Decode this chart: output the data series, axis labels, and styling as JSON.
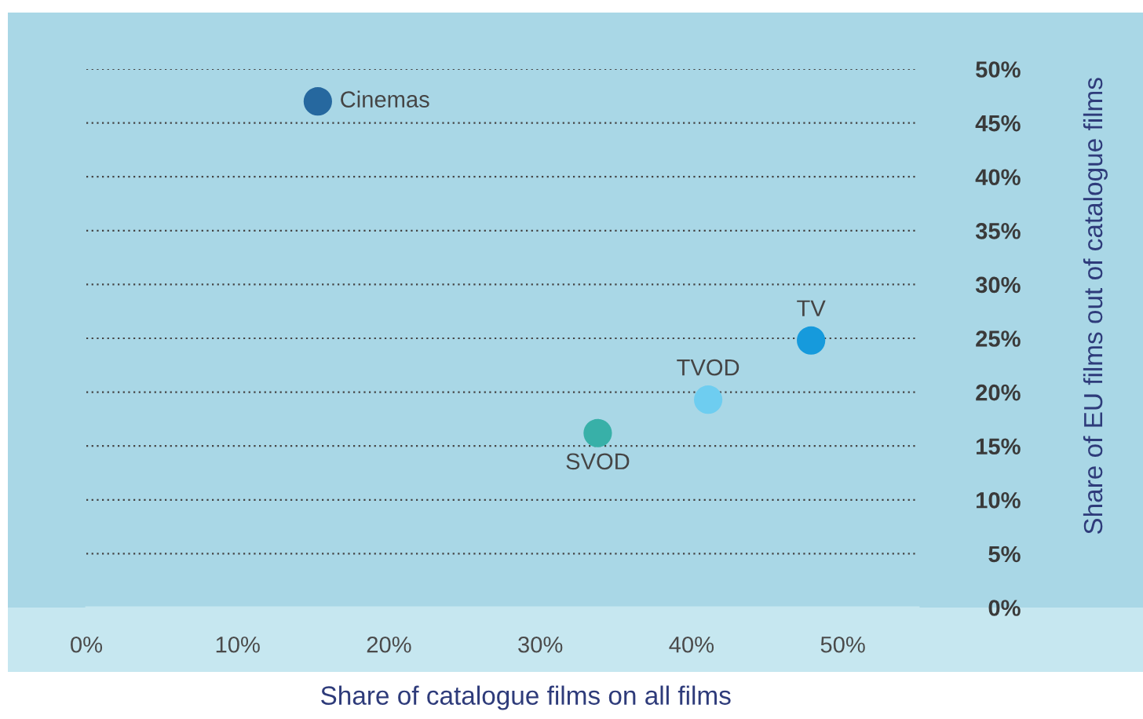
{
  "chart_data": {
    "type": "scatter",
    "xlabel": "Share of catalogue films on all films",
    "ylabel": "Share of EU films out of catalogue films",
    "series": [
      {
        "name": "Cinemas",
        "color": "#26689f",
        "x": [
          15.3
        ],
        "values": [
          47.0
        ]
      },
      {
        "name": "TV",
        "color": "#169adc",
        "x": [
          47.9
        ],
        "values": [
          24.8
        ]
      },
      {
        "name": "TVOD",
        "color": "#6ecdf0",
        "x": [
          41.1
        ],
        "values": [
          19.3
        ]
      },
      {
        "name": "SVOD",
        "color": "#38b0a8",
        "x": [
          33.8
        ],
        "values": [
          16.2
        ]
      }
    ],
    "xlim": [
      0,
      55
    ],
    "ylim": [
      0,
      50
    ],
    "xticks": [
      {
        "value": 0,
        "label": "0%"
      },
      {
        "value": 10,
        "label": "10%"
      },
      {
        "value": 20,
        "label": "20%"
      },
      {
        "value": 30,
        "label": "30%"
      },
      {
        "value": 40,
        "label": "40%"
      },
      {
        "value": 50,
        "label": "50%"
      }
    ],
    "yticks": [
      {
        "value": 0,
        "label": "0%"
      },
      {
        "value": 5,
        "label": "5%"
      },
      {
        "value": 10,
        "label": "10%"
      },
      {
        "value": 15,
        "label": "15%"
      },
      {
        "value": 20,
        "label": "20%"
      },
      {
        "value": 25,
        "label": "25%"
      },
      {
        "value": 30,
        "label": "30%"
      },
      {
        "value": 35,
        "label": "35%"
      },
      {
        "value": 40,
        "label": "40%"
      },
      {
        "value": 45,
        "label": "45%"
      },
      {
        "value": 50,
        "label": "50%"
      }
    ],
    "grid": "y",
    "marker": "circle"
  }
}
